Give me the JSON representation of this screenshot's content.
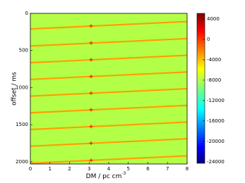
{
  "chart_data": {
    "type": "heatmap",
    "xlabel": "DM / pc cm",
    "xlabel_superscript": "-3",
    "ylabel": "offset / ms",
    "xlim": [
      0,
      8
    ],
    "xticks": [
      0,
      1,
      2,
      3,
      4,
      5,
      6,
      7,
      8
    ],
    "ylim": [
      2030,
      0
    ],
    "yticks": [
      0,
      500,
      1000,
      1500,
      2000
    ],
    "colormap": "jet",
    "clim": [
      -24300,
      5100
    ],
    "cticks": [
      4000,
      0,
      -4000,
      -8000,
      -12000,
      -16000,
      -20000,
      -24000
    ],
    "background_value": -8000,
    "ridges": [
      {
        "start": 210,
        "end": 110,
        "value": -3000
      },
      {
        "start": 440,
        "end": 340,
        "value": -3000
      },
      {
        "start": 665,
        "end": 565,
        "value": -3000
      },
      {
        "start": 890,
        "end": 790,
        "value": -3000
      },
      {
        "start": 1115,
        "end": 1015,
        "value": -3000
      },
      {
        "start": 1340,
        "end": 1240,
        "value": -3000
      },
      {
        "start": 1565,
        "end": 1465,
        "value": -3000
      },
      {
        "start": 1790,
        "end": 1690,
        "value": -3000
      },
      {
        "start": 2020,
        "end": 1920,
        "value": -3000
      }
    ],
    "markers": {
      "color": "#ff0000",
      "x": [
        3.1,
        3.1,
        3.1,
        3.1,
        3.1,
        3.1,
        3.1,
        3.1,
        3.1
      ],
      "y": [
        170,
        398,
        625,
        850,
        1075,
        1300,
        1525,
        1750,
        1980
      ]
    }
  }
}
